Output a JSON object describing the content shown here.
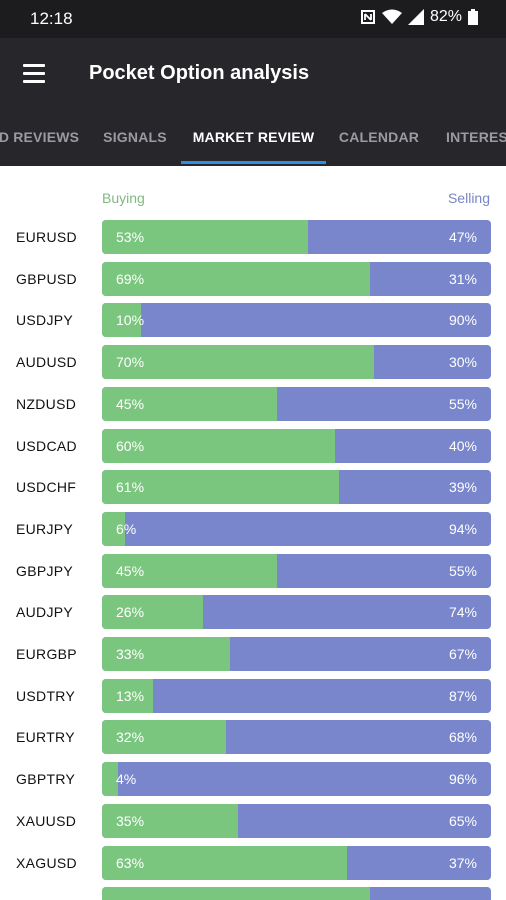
{
  "status": {
    "time": "12:18",
    "battery": "82%",
    "icons": [
      "nfc-icon",
      "wifi-icon",
      "signal-icon",
      "battery-icon"
    ]
  },
  "appbar": {
    "title": "Pocket Option analysis",
    "menu_icon": "hamburger-menu-icon"
  },
  "tabs": [
    {
      "label": "D REVIEWS",
      "active": false
    },
    {
      "label": "SIGNALS",
      "active": false
    },
    {
      "label": "MARKET REVIEW",
      "active": true
    },
    {
      "label": "CALENDAR",
      "active": false
    },
    {
      "label": "INTERES",
      "active": false
    }
  ],
  "columns": {
    "buying": "Buying",
    "selling": "Selling"
  },
  "colors": {
    "buy": "#7bc67e",
    "sell": "#7986cb",
    "tab_indicator": "#2d8fe0",
    "appbar": "#27272b"
  },
  "rows": [
    {
      "pair": "EURUSD",
      "buy": 53,
      "sell": 47,
      "buy_label": "53%",
      "sell_label": "47%"
    },
    {
      "pair": "GBPUSD",
      "buy": 69,
      "sell": 31,
      "buy_label": "69%",
      "sell_label": "31%"
    },
    {
      "pair": "USDJPY",
      "buy": 10,
      "sell": 90,
      "buy_label": "10%",
      "sell_label": "90%"
    },
    {
      "pair": "AUDUSD",
      "buy": 70,
      "sell": 30,
      "buy_label": "70%",
      "sell_label": "30%"
    },
    {
      "pair": "NZDUSD",
      "buy": 45,
      "sell": 55,
      "buy_label": "45%",
      "sell_label": "55%"
    },
    {
      "pair": "USDCAD",
      "buy": 60,
      "sell": 40,
      "buy_label": "60%",
      "sell_label": "40%"
    },
    {
      "pair": "USDCHF",
      "buy": 61,
      "sell": 39,
      "buy_label": "61%",
      "sell_label": "39%"
    },
    {
      "pair": "EURJPY",
      "buy": 6,
      "sell": 94,
      "buy_label": "6%",
      "sell_label": "94%"
    },
    {
      "pair": "GBPJPY",
      "buy": 45,
      "sell": 55,
      "buy_label": "45%",
      "sell_label": "55%"
    },
    {
      "pair": "AUDJPY",
      "buy": 26,
      "sell": 74,
      "buy_label": "26%",
      "sell_label": "74%"
    },
    {
      "pair": "EURGBP",
      "buy": 33,
      "sell": 67,
      "buy_label": "33%",
      "sell_label": "67%"
    },
    {
      "pair": "USDTRY",
      "buy": 13,
      "sell": 87,
      "buy_label": "13%",
      "sell_label": "87%"
    },
    {
      "pair": "EURTRY",
      "buy": 32,
      "sell": 68,
      "buy_label": "32%",
      "sell_label": "68%"
    },
    {
      "pair": "GBPTRY",
      "buy": 4,
      "sell": 96,
      "buy_label": "4%",
      "sell_label": "96%"
    },
    {
      "pair": "XAUUSD",
      "buy": 35,
      "sell": 65,
      "buy_label": "35%",
      "sell_label": "65%"
    },
    {
      "pair": "XAGUSD",
      "buy": 63,
      "sell": 37,
      "buy_label": "63%",
      "sell_label": "37%"
    },
    {
      "pair": "",
      "buy": 69,
      "sell": 31,
      "buy_label": "",
      "sell_label": ""
    }
  ]
}
